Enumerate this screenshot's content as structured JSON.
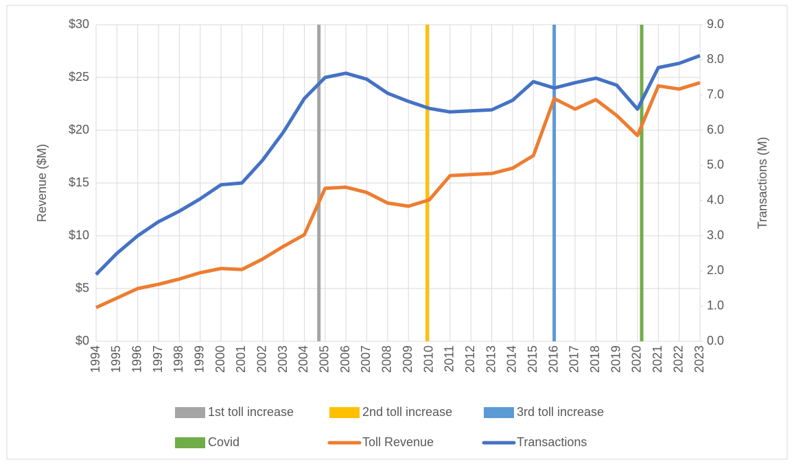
{
  "chart_data": {
    "type": "line",
    "y_label": "Revenue ($M)",
    "y2_label": "Transactions (M)",
    "x": [
      1994,
      1995,
      1996,
      1997,
      1998,
      1999,
      2000,
      2001,
      2002,
      2003,
      2004,
      2005,
      2006,
      2007,
      2008,
      2009,
      2010,
      2011,
      2012,
      2013,
      2014,
      2015,
      2016,
      2017,
      2018,
      2019,
      2020,
      2021,
      2022,
      2023
    ],
    "xlim": [
      1994,
      2023
    ],
    "ylim": [
      0,
      30
    ],
    "yticks": [
      {
        "value": 0,
        "label": "$0"
      },
      {
        "value": 5,
        "label": "$5"
      },
      {
        "value": 10,
        "label": "$10"
      },
      {
        "value": 15,
        "label": "$15"
      },
      {
        "value": 20,
        "label": "$20"
      },
      {
        "value": 25,
        "label": "$25"
      },
      {
        "value": 30,
        "label": "$30"
      }
    ],
    "y2lim": [
      0,
      9
    ],
    "y2ticks": [
      {
        "value": 0,
        "label": "0.0"
      },
      {
        "value": 1,
        "label": "1.0"
      },
      {
        "value": 2,
        "label": "2.0"
      },
      {
        "value": 3,
        "label": "3.0"
      },
      {
        "value": 4,
        "label": "4.0"
      },
      {
        "value": 5,
        "label": "5.0"
      },
      {
        "value": 6,
        "label": "6.0"
      },
      {
        "value": 7,
        "label": "7.0"
      },
      {
        "value": 8,
        "label": "8.0"
      },
      {
        "value": 9,
        "label": "9.0"
      }
    ],
    "grid": true,
    "legend": "bottom",
    "series": [
      {
        "name": "1st toll increase",
        "type": "vline",
        "color": "#a5a5a5",
        "x": 2004.7
      },
      {
        "name": "2nd toll increase",
        "type": "vline",
        "color": "#ffc000",
        "x": 2009.9
      },
      {
        "name": "3rd toll increase",
        "type": "vline",
        "color": "#5b9bd5",
        "x": 2016
      },
      {
        "name": "Covid",
        "type": "vline",
        "color": "#70ad47",
        "x": 2020.2
      },
      {
        "name": "Toll Revenue",
        "type": "line",
        "color": "#ed7d31",
        "values": [
          3.2,
          4.1,
          5.0,
          5.4,
          5.9,
          6.5,
          6.9,
          6.8,
          7.8,
          9.0,
          10.1,
          14.5,
          14.6,
          14.1,
          13.1,
          12.8,
          13.4,
          15.7,
          15.8,
          15.9,
          16.4,
          17.6,
          23.0,
          22.0,
          22.9,
          21.4,
          19.5,
          24.2,
          23.9,
          24.5
        ]
      },
      {
        "name": "Transactions",
        "type": "line",
        "axis": "y2",
        "color": "#4472c4",
        "values": [
          1.9,
          2.5,
          3.0,
          3.4,
          3.7,
          4.05,
          4.45,
          4.5,
          5.15,
          5.95,
          6.9,
          7.5,
          7.62,
          7.45,
          7.05,
          6.82,
          6.62,
          6.52,
          6.55,
          6.58,
          6.85,
          7.38,
          7.2,
          7.35,
          7.48,
          7.28,
          6.6,
          7.78,
          7.9,
          8.12
        ]
      }
    ]
  }
}
